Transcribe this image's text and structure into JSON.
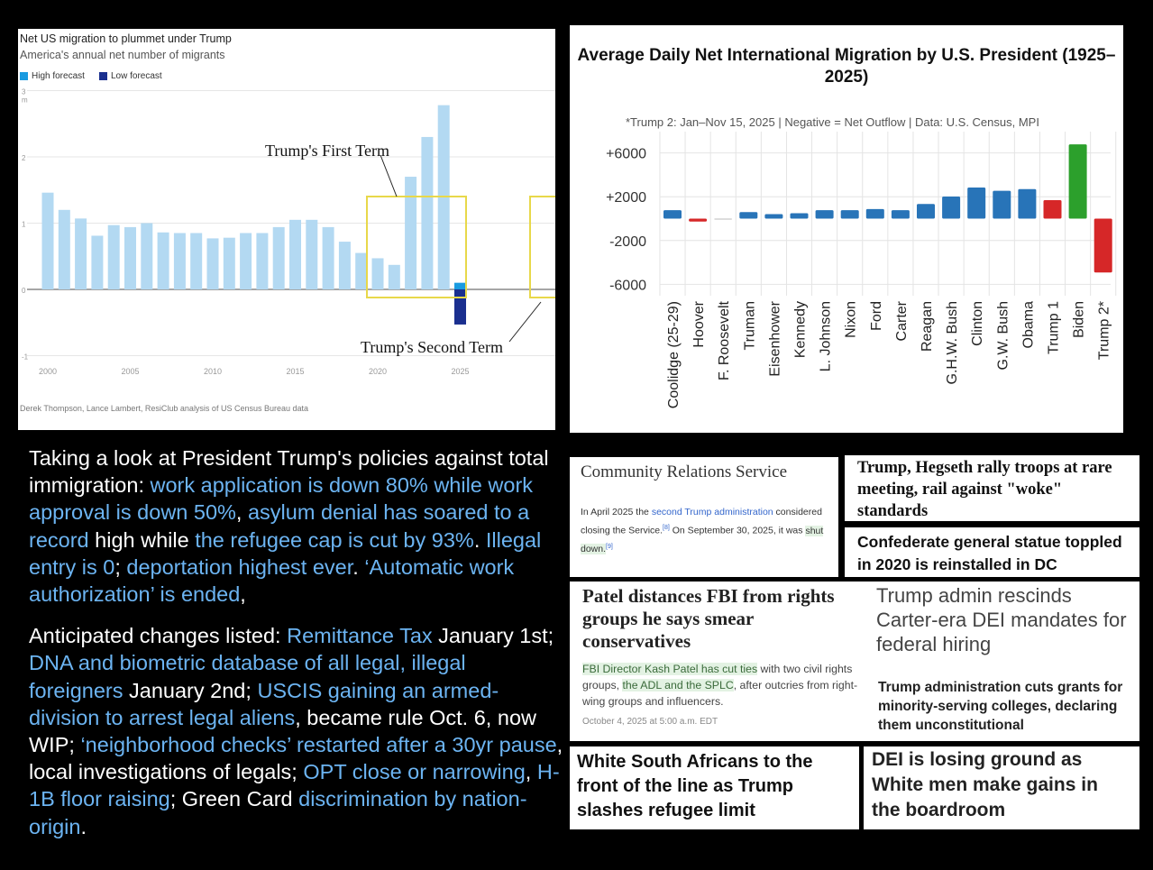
{
  "chart_data": [
    {
      "type": "bar",
      "title": "Net US migration to plummet under Trump",
      "subtitle": "America's annual net number of migrants",
      "unit": "m",
      "legend": [
        {
          "name": "High forecast",
          "color": "#1a9be0"
        },
        {
          "name": "Low forecast",
          "color": "#1a2f8f"
        }
      ],
      "categories": [
        2000,
        2001,
        2002,
        2003,
        2004,
        2005,
        2006,
        2007,
        2008,
        2009,
        2010,
        2011,
        2012,
        2013,
        2014,
        2015,
        2016,
        2017,
        2018,
        2019,
        2020,
        2021,
        2022,
        2023,
        2024
      ],
      "values": [
        1.46,
        1.2,
        1.07,
        0.81,
        0.97,
        0.94,
        1.0,
        0.86,
        0.85,
        0.85,
        0.77,
        0.78,
        0.85,
        0.85,
        0.94,
        1.05,
        1.05,
        0.94,
        0.72,
        0.55,
        0.47,
        0.37,
        1.7,
        2.3,
        2.78
      ],
      "forecast_2025": {
        "high": 0.1,
        "low": -0.53
      },
      "xticks": [
        "2000",
        "2005",
        "2010",
        "2015",
        "2020",
        "2025"
      ],
      "yticks": [
        "-1",
        "0",
        "1",
        "2",
        "3"
      ],
      "ylim": [
        -1,
        3
      ],
      "annotations": [
        "Trump's First Term",
        "Trump's Second Term"
      ],
      "source": "Derek Thompson, Lance Lambert, ResiClub analysis of US Census Bureau data",
      "bar_color": "#b3d9f2"
    },
    {
      "type": "bar",
      "title": "Average Daily Net International Migration by U.S. President (1925–2025)",
      "subtitle": "*Trump 2: Jan–Nov 15, 2025 | Negative = Net Outflow | Data: U.S. Census, MPI",
      "categories": [
        "Coolidge (25-29)",
        "Hoover",
        "F. Roosevelt",
        "Truman",
        "Eisenhower",
        "Kennedy",
        "L. Johnson",
        "Nixon",
        "Ford",
        "Carter",
        "Reagan",
        "G.H.W. Bush",
        "Clinton",
        "G.W. Bush",
        "Obama",
        "Trump 1",
        "Biden",
        "Trump 2*"
      ],
      "values": [
        770,
        -270,
        -20,
        600,
        410,
        490,
        770,
        770,
        870,
        770,
        1340,
        2020,
        2840,
        2540,
        2700,
        1690,
        6780,
        -4920
      ],
      "colors": [
        "#2874b8",
        "#d62728",
        "#bbbbbb",
        "#2874b8",
        "#2874b8",
        "#2874b8",
        "#2874b8",
        "#2874b8",
        "#2874b8",
        "#2874b8",
        "#2874b8",
        "#2874b8",
        "#2874b8",
        "#2874b8",
        "#2874b8",
        "#d62728",
        "#2ca02c",
        "#d62728"
      ],
      "yticks": [
        "+6000",
        "+2000",
        "-2000",
        "-6000"
      ],
      "grid": true
    }
  ],
  "paragraph": [
    [
      [
        "Taking a look at President Trump's policies against total immigration: ",
        0
      ],
      [
        "work application is down 80% while work approval is down 50%",
        1
      ],
      [
        ", ",
        0
      ],
      [
        "asylum denial has soared to a record",
        1
      ],
      [
        " high while ",
        0
      ],
      [
        "the refugee cap is cut by 93%",
        1
      ],
      [
        ". ",
        0
      ],
      [
        "Illegal entry is 0",
        1
      ],
      [
        "; ",
        0
      ],
      [
        "deportation highest ever",
        1
      ],
      [
        ". ",
        0
      ],
      [
        "‘Automatic work authorization’ is ended",
        1
      ],
      [
        ",",
        0
      ]
    ],
    [
      [
        "Anticipated changes listed: ",
        0
      ],
      [
        "Remittance Tax",
        1
      ],
      [
        " January 1st; ",
        0
      ],
      [
        "DNA and biometric database of all legal, illegal foreigners",
        1
      ],
      [
        " January 2nd; ",
        0
      ],
      [
        "USCIS gaining an armed-division to arrest legal aliens",
        1
      ],
      [
        ", became rule Oct. 6, now WIP; ",
        0
      ],
      [
        "‘neighborhood checks’ restarted after a 30yr pause",
        1
      ],
      [
        ", local investigations of legals; ",
        0
      ],
      [
        "OPT close or narrowing",
        1
      ],
      [
        ", ",
        0
      ],
      [
        "H-1B floor raising",
        1
      ],
      [
        "; Green Card ",
        0
      ],
      [
        "discrimination by nation-origin",
        1
      ],
      [
        ".",
        0
      ]
    ]
  ],
  "cards": {
    "crs": {
      "title": "Community Relations Service",
      "t1": "In April 2025 the ",
      "l1": "second Trump administration",
      "t2": " considered closing the Service.",
      "r1": "[8]",
      "t3": " On September 30, 2025, it was ",
      "l2": "shut down.",
      "r2": "[9]"
    },
    "hegseth": "Trump, Hegseth rally troops at rare meeting, rail against \"woke\" standards",
    "statue": "Confederate general statue toppled in 2020 is reinstalled in DC",
    "patel": {
      "title": "Patel distances FBI from rights groups he says smear conservatives",
      "h1": "FBI Director Kash Patel has cut ties",
      "t1": " with two civil rights groups, ",
      "h2": "the ADL and the SPLC",
      "t2": ", after outcries from right-wing groups and influencers.",
      "date": "October 4, 2025 at 5:00 a.m. EDT"
    },
    "dei_hiring": "Trump admin rescinds Carter-era DEI mandates for federal hiring",
    "grants": "Trump administration cuts grants for minority-serving colleges, declaring them unconstitutional",
    "south_africans": "White South Africans to the front of the line as Trump slashes refugee limit",
    "dei_boardroom": "DEI is losing ground as White men make gains in the boardroom"
  }
}
